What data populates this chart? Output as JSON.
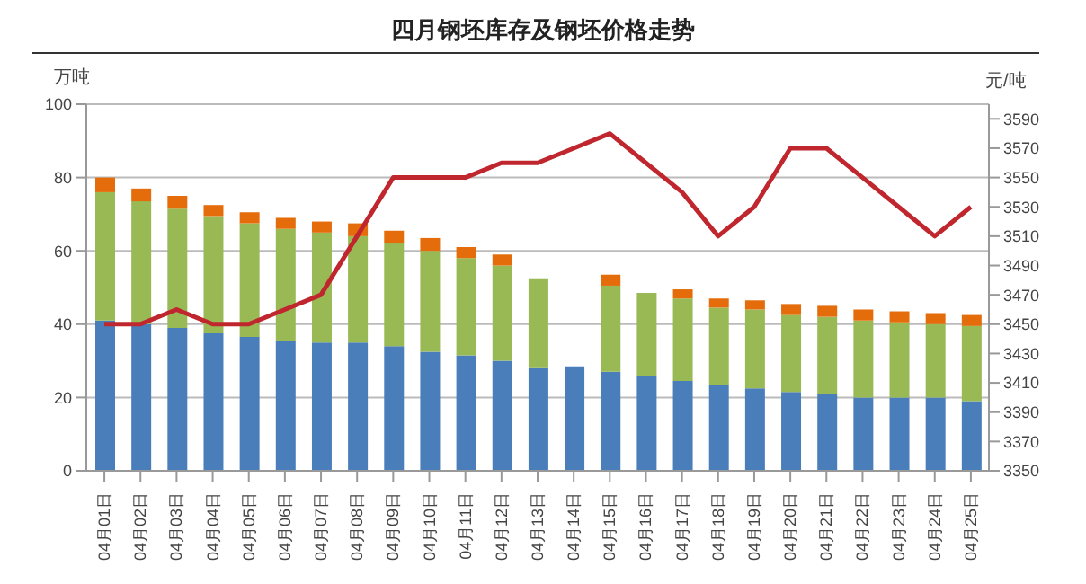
{
  "chart_data": {
    "type": "bar",
    "title": "四月钢坯库存及钢坯价格走势",
    "ylabel": "万吨",
    "y2label": "元/吨",
    "stacked": true,
    "grid": "y",
    "categories": [
      "04月01日",
      "04月02日",
      "04月03日",
      "04月04日",
      "04月05日",
      "04月06日",
      "04月07日",
      "04月08日",
      "04月09日",
      "04月10日",
      "04月11日",
      "04月12日",
      "04月13日",
      "04月14日",
      "04月15日",
      "04月16日",
      "04月17日",
      "04月18日",
      "04月19日",
      "04月20日",
      "04月21日",
      "04月22日",
      "04月23日",
      "04月24日",
      "04月25日"
    ],
    "series": [
      {
        "color": "#4a7ebb",
        "values": [
          41,
          40,
          39,
          37.5,
          36.5,
          35.5,
          35,
          35,
          34,
          32.5,
          31.5,
          30,
          28,
          28.5,
          27,
          26,
          24.5,
          23.5,
          22.5,
          21.5,
          21,
          20,
          20,
          20,
          19
        ]
      },
      {
        "color": "#98b954",
        "values": [
          35,
          33.5,
          32.5,
          32,
          31,
          30.5,
          30,
          29,
          28,
          27.5,
          26.5,
          26,
          24.5,
          null,
          23.5,
          22.5,
          22.5,
          21,
          21.5,
          21,
          21,
          21,
          20.5,
          20,
          20.5
        ]
      },
      {
        "color": "#e46c0a",
        "values": [
          4,
          3.5,
          3.5,
          3,
          3,
          3,
          3,
          3.5,
          3.5,
          3.5,
          3,
          3,
          null,
          null,
          3,
          null,
          2.5,
          2.5,
          2.5,
          3,
          3,
          3,
          3,
          3,
          3
        ]
      },
      {
        "type": "line",
        "axis": "y2",
        "color": "#c0262d",
        "marker": "none",
        "values": [
          3450,
          3450,
          3460,
          3450,
          3450,
          3460,
          3470,
          3510,
          3550,
          3550,
          3550,
          3560,
          3560,
          3570,
          3580,
          3560,
          3540,
          3510,
          3530,
          3570,
          3570,
          3550,
          3530,
          3510,
          3530
        ]
      }
    ],
    "ylim": [
      0,
      100
    ],
    "yticks": [
      0,
      20,
      40,
      60,
      80,
      100
    ],
    "y2lim": [
      3350,
      3600
    ],
    "y2ticks": [
      3350,
      3370,
      3390,
      3410,
      3430,
      3450,
      3470,
      3490,
      3510,
      3530,
      3550,
      3570,
      3590
    ]
  }
}
